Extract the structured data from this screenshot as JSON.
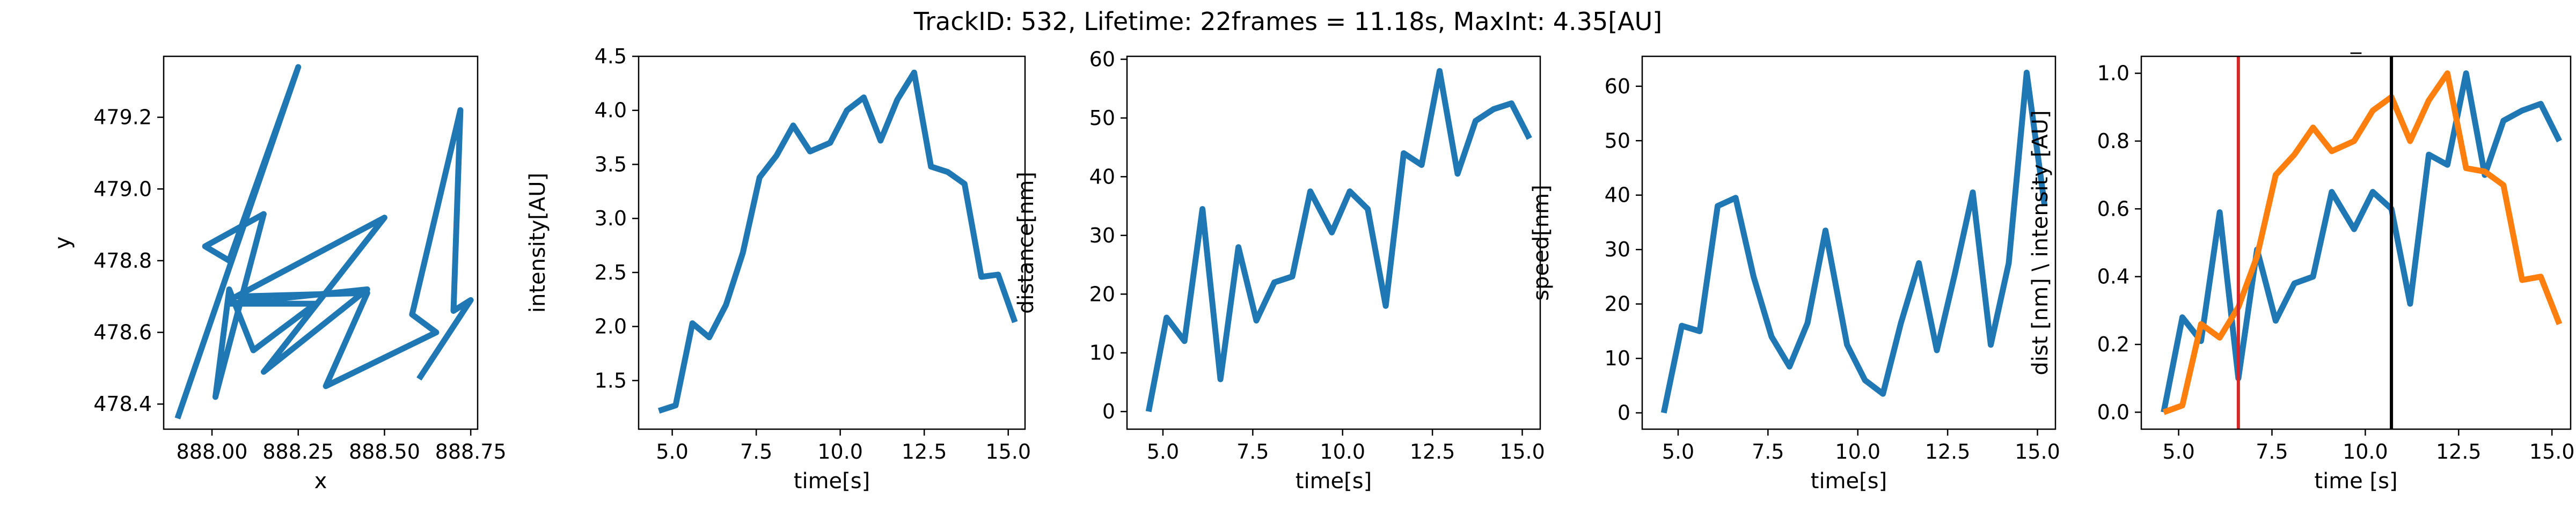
{
  "figure": {
    "suptitle": "TrackID: 532, Lifetime: 22frames = 11.18s, MaxInt: 4.35[AU]",
    "colors": {
      "blue": "#1f77b4",
      "orange": "#ff7f0e",
      "red": "#d62728",
      "black": "#000000"
    }
  },
  "chart_data": [
    {
      "type": "line",
      "title": "",
      "xlabel": "x",
      "ylabel": "y",
      "xlim": [
        887.86,
        888.77
      ],
      "ylim": [
        478.33,
        479.37
      ],
      "xticks": [
        888.0,
        888.25,
        888.5,
        888.75
      ],
      "xtick_labels": [
        "888.00",
        "888.25",
        "888.50",
        "888.75"
      ],
      "yticks": [
        478.4,
        478.6,
        478.8,
        479.0,
        479.2
      ],
      "ytick_labels": [
        "478.4",
        "478.6",
        "478.8",
        "479.0",
        "479.2"
      ],
      "series": [
        {
          "color": "#1f77b4",
          "x": [
            887.9,
            888.25,
            888.05,
            887.98,
            888.15,
            888.01,
            888.05,
            888.12,
            888.3,
            888.05,
            888.45,
            888.15,
            888.5,
            888.07,
            888.45,
            888.33,
            888.65,
            888.58,
            888.72,
            888.7,
            888.75,
            888.6
          ],
          "y": [
            478.36,
            479.34,
            478.8,
            478.84,
            478.93,
            478.42,
            478.72,
            478.55,
            478.68,
            478.68,
            478.72,
            478.49,
            478.92,
            478.7,
            478.71,
            478.45,
            478.6,
            478.65,
            479.22,
            478.66,
            478.69,
            478.47
          ]
        }
      ]
    },
    {
      "type": "line",
      "title": "",
      "xlabel": "time[s]",
      "ylabel": "intensity[AU]",
      "xlim": [
        4.0,
        15.5
      ],
      "ylim": [
        1.05,
        4.5
      ],
      "xticks": [
        5.0,
        7.5,
        10.0,
        12.5,
        15.0
      ],
      "xtick_labels": [
        "5.0",
        "7.5",
        "10.0",
        "12.5",
        "15.0"
      ],
      "yticks": [
        1.5,
        2.0,
        2.5,
        3.0,
        3.5,
        4.0,
        4.5
      ],
      "ytick_labels": [
        "1.5",
        "2.0",
        "2.5",
        "3.0",
        "3.5",
        "4.0",
        "4.5"
      ],
      "series": [
        {
          "color": "#1f77b4",
          "x": [
            4.6,
            5.1,
            5.6,
            6.1,
            6.6,
            7.1,
            7.6,
            8.1,
            8.6,
            9.1,
            9.7,
            10.2,
            10.7,
            11.2,
            11.7,
            12.2,
            12.7,
            13.2,
            13.7,
            14.2,
            14.7,
            15.2
          ],
          "y": [
            1.22,
            1.27,
            2.03,
            1.9,
            2.2,
            2.68,
            3.38,
            3.58,
            3.86,
            3.62,
            3.7,
            4.0,
            4.12,
            3.72,
            4.1,
            4.35,
            3.48,
            3.43,
            3.32,
            2.46,
            2.48,
            2.04
          ]
        }
      ]
    },
    {
      "type": "line",
      "title": "",
      "xlabel": "time[s]",
      "ylabel": "distance[nm]",
      "xlim": [
        4.0,
        15.5
      ],
      "ylim": [
        -3.0,
        60.5
      ],
      "xticks": [
        5.0,
        7.5,
        10.0,
        12.5,
        15.0
      ],
      "xtick_labels": [
        "5.0",
        "7.5",
        "10.0",
        "12.5",
        "15.0"
      ],
      "yticks": [
        0,
        10,
        20,
        30,
        40,
        50,
        60
      ],
      "ytick_labels": [
        "0",
        "10",
        "20",
        "30",
        "40",
        "50",
        "60"
      ],
      "series": [
        {
          "color": "#1f77b4",
          "x": [
            4.6,
            5.1,
            5.6,
            6.1,
            6.6,
            7.1,
            7.6,
            8.1,
            8.6,
            9.1,
            9.7,
            10.2,
            10.7,
            11.2,
            11.7,
            12.2,
            12.7,
            13.2,
            13.7,
            14.2,
            14.7,
            15.2
          ],
          "y": [
            0,
            16,
            12,
            34.5,
            5.5,
            28,
            15.5,
            22,
            23,
            37.5,
            30.5,
            37.5,
            34.5,
            18,
            44,
            42,
            58,
            40.5,
            49.5,
            51.5,
            52.5,
            46.5
          ]
        }
      ]
    },
    {
      "type": "line",
      "title": "",
      "xlabel": "time[s]",
      "ylabel": "speed[nm]",
      "xlim": [
        4.0,
        15.5
      ],
      "ylim": [
        -3.0,
        65.5
      ],
      "xticks": [
        5.0,
        7.5,
        10.0,
        12.5,
        15.0
      ],
      "xtick_labels": [
        "5.0",
        "7.5",
        "10.0",
        "12.5",
        "15.0"
      ],
      "yticks": [
        0,
        10,
        20,
        30,
        40,
        50,
        60
      ],
      "ytick_labels": [
        "0",
        "10",
        "20",
        "30",
        "40",
        "50",
        "60"
      ],
      "series": [
        {
          "color": "#1f77b4",
          "x": [
            4.6,
            5.1,
            5.6,
            6.1,
            6.6,
            7.1,
            7.6,
            8.1,
            8.6,
            9.1,
            9.7,
            10.2,
            10.7,
            11.2,
            11.7,
            12.2,
            12.7,
            13.2,
            13.7,
            14.2,
            14.7,
            15.2
          ],
          "y": [
            0,
            16,
            15,
            38,
            39.5,
            25,
            14,
            8.5,
            16.5,
            33.5,
            12.5,
            6,
            3.5,
            16.5,
            27.5,
            11.5,
            25.5,
            40.5,
            12.5,
            27.5,
            62.5,
            38
          ]
        }
      ]
    },
    {
      "type": "line",
      "title": "_",
      "xlabel": "time [s]",
      "ylabel": "dist [nm] \\ intensity [AU]",
      "xlim": [
        4.0,
        15.5
      ],
      "ylim": [
        -0.05,
        1.05
      ],
      "xticks": [
        5.0,
        7.5,
        10.0,
        12.5,
        15.0
      ],
      "xtick_labels": [
        "5.0",
        "7.5",
        "10.0",
        "12.5",
        "15.0"
      ],
      "yticks": [
        0.0,
        0.2,
        0.4,
        0.6,
        0.8,
        1.0
      ],
      "ytick_labels": [
        "0.0",
        "0.2",
        "0.4",
        "0.6",
        "0.8",
        "1.0"
      ],
      "series": [
        {
          "color": "#1f77b4",
          "x": [
            4.6,
            5.1,
            5.6,
            6.1,
            6.6,
            7.1,
            7.6,
            8.1,
            8.6,
            9.1,
            9.7,
            10.2,
            10.7,
            11.2,
            11.7,
            12.2,
            12.7,
            13.2,
            13.7,
            14.2,
            14.7,
            15.2
          ],
          "y": [
            0.0,
            0.28,
            0.21,
            0.59,
            0.1,
            0.48,
            0.27,
            0.38,
            0.4,
            0.65,
            0.54,
            0.65,
            0.6,
            0.32,
            0.76,
            0.73,
            1.0,
            0.7,
            0.86,
            0.89,
            0.91,
            0.8
          ]
        },
        {
          "color": "#ff7f0e",
          "x": [
            4.6,
            5.1,
            5.6,
            6.1,
            6.6,
            7.1,
            7.6,
            8.1,
            8.6,
            9.1,
            9.7,
            10.2,
            10.7,
            11.2,
            11.7,
            12.2,
            12.7,
            13.2,
            13.7,
            14.2,
            14.7,
            15.2
          ],
          "y": [
            0.0,
            0.02,
            0.26,
            0.22,
            0.31,
            0.46,
            0.7,
            0.76,
            0.84,
            0.77,
            0.8,
            0.89,
            0.93,
            0.8,
            0.92,
            1.0,
            0.72,
            0.71,
            0.67,
            0.39,
            0.4,
            0.26
          ]
        }
      ],
      "vlines": [
        {
          "x": 6.6,
          "color": "#d62728"
        },
        {
          "x": 10.7,
          "color": "#000000"
        }
      ]
    }
  ]
}
